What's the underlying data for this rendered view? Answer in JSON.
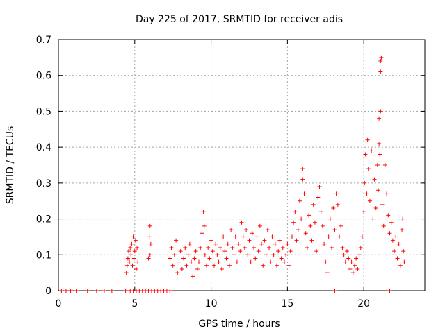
{
  "chart_data": {
    "type": "scatter",
    "title": "Day 225 of 2017, SRMTID for receiver adis",
    "xlabel": "GPS time / hours",
    "ylabel": "SRMTID / TECUs",
    "xlim": [
      0,
      24
    ],
    "ylim": [
      0,
      0.7
    ],
    "x_ticks": [
      0,
      5,
      10,
      15,
      20
    ],
    "y_ticks": [
      0,
      0.1,
      0.2,
      0.3,
      0.4,
      0.5,
      0.6,
      0.7
    ],
    "x_tick_labels": [
      "0",
      "5",
      "10",
      "15",
      "20"
    ],
    "y_tick_labels": [
      "0",
      "0.1",
      "0.2",
      "0.3",
      "0.4",
      "0.5",
      "0.6",
      "0.7"
    ],
    "grid": true,
    "marker": "+",
    "colors": {
      "points": "#ff0000",
      "grid": "#a0a0a0",
      "axis": "#000000"
    },
    "series": [
      {
        "name": "SRMTID",
        "points": [
          [
            0.2,
            0
          ],
          [
            0.5,
            0
          ],
          [
            0.8,
            0
          ],
          [
            1.2,
            0
          ],
          [
            1.9,
            0
          ],
          [
            2.5,
            0
          ],
          [
            3.0,
            0
          ],
          [
            3.5,
            0
          ],
          [
            4.4,
            0
          ],
          [
            4.7,
            0
          ],
          [
            4.9,
            0
          ],
          [
            5.1,
            0
          ],
          [
            5.3,
            0
          ],
          [
            5.5,
            0
          ],
          [
            5.7,
            0
          ],
          [
            5.9,
            0
          ],
          [
            6.1,
            0
          ],
          [
            6.3,
            0
          ],
          [
            6.5,
            0
          ],
          [
            6.7,
            0
          ],
          [
            6.9,
            0
          ],
          [
            7.1,
            0
          ],
          [
            7.3,
            0
          ],
          [
            18.1,
            0
          ],
          [
            21.7,
            0
          ],
          [
            4.45,
            0.05
          ],
          [
            4.5,
            0.07
          ],
          [
            4.55,
            0.09
          ],
          [
            4.6,
            0.11
          ],
          [
            4.65,
            0.08
          ],
          [
            4.7,
            0.12
          ],
          [
            4.75,
            0.1
          ],
          [
            4.8,
            0.13
          ],
          [
            4.85,
            0.07
          ],
          [
            4.9,
            0.15
          ],
          [
            4.95,
            0.09
          ],
          [
            5.0,
            0.11
          ],
          [
            5.05,
            0.14
          ],
          [
            5.1,
            0.06
          ],
          [
            5.15,
            0.12
          ],
          [
            5.2,
            0.08
          ],
          [
            5.9,
            0.09
          ],
          [
            5.95,
            0.15
          ],
          [
            6.0,
            0.18
          ],
          [
            6.0,
            0.1
          ],
          [
            6.05,
            0.13
          ],
          [
            7.3,
            0.09
          ],
          [
            7.4,
            0.12
          ],
          [
            7.5,
            0.07
          ],
          [
            7.6,
            0.1
          ],
          [
            7.7,
            0.14
          ],
          [
            7.8,
            0.05
          ],
          [
            7.9,
            0.08
          ],
          [
            8.0,
            0.11
          ],
          [
            8.1,
            0.06
          ],
          [
            8.2,
            0.09
          ],
          [
            8.3,
            0.12
          ],
          [
            8.4,
            0.07
          ],
          [
            8.5,
            0.1
          ],
          [
            8.6,
            0.13
          ],
          [
            8.7,
            0.08
          ],
          [
            8.8,
            0.04
          ],
          [
            8.9,
            0.09
          ],
          [
            9.0,
            0.11
          ],
          [
            9.1,
            0.06
          ],
          [
            9.2,
            0.08
          ],
          [
            9.3,
            0.12
          ],
          [
            9.4,
            0.16
          ],
          [
            9.5,
            0.22
          ],
          [
            9.55,
            0.18
          ],
          [
            9.6,
            0.1
          ],
          [
            9.7,
            0.07
          ],
          [
            9.8,
            0.12
          ],
          [
            9.9,
            0.09
          ],
          [
            10.0,
            0.14
          ],
          [
            10.1,
            0.11
          ],
          [
            10.2,
            0.07
          ],
          [
            10.3,
            0.13
          ],
          [
            10.4,
            0.1
          ],
          [
            10.5,
            0.08
          ],
          [
            10.6,
            0.12
          ],
          [
            10.7,
            0.06
          ],
          [
            10.8,
            0.15
          ],
          [
            10.9,
            0.11
          ],
          [
            11.0,
            0.09
          ],
          [
            11.1,
            0.13
          ],
          [
            11.2,
            0.07
          ],
          [
            11.3,
            0.17
          ],
          [
            11.4,
            0.12
          ],
          [
            11.5,
            0.1
          ],
          [
            11.6,
            0.15
          ],
          [
            11.7,
            0.08
          ],
          [
            11.8,
            0.13
          ],
          [
            11.9,
            0.11
          ],
          [
            12.0,
            0.19
          ],
          [
            12.1,
            0.15
          ],
          [
            12.2,
            0.12
          ],
          [
            12.3,
            0.17
          ],
          [
            12.4,
            0.1
          ],
          [
            12.5,
            0.14
          ],
          [
            12.6,
            0.08
          ],
          [
            12.7,
            0.16
          ],
          [
            12.8,
            0.12
          ],
          [
            12.9,
            0.09
          ],
          [
            13.0,
            0.15
          ],
          [
            13.1,
            0.11
          ],
          [
            13.2,
            0.18
          ],
          [
            13.3,
            0.13
          ],
          [
            13.4,
            0.07
          ],
          [
            13.5,
            0.14
          ],
          [
            13.6,
            0.1
          ],
          [
            13.7,
            0.17
          ],
          [
            13.8,
            0.12
          ],
          [
            13.9,
            0.08
          ],
          [
            14.0,
            0.15
          ],
          [
            14.1,
            0.1
          ],
          [
            14.2,
            0.13
          ],
          [
            14.3,
            0.07
          ],
          [
            14.4,
            0.11
          ],
          [
            14.5,
            0.14
          ],
          [
            14.6,
            0.09
          ],
          [
            14.7,
            0.12
          ],
          [
            14.8,
            0.08
          ],
          [
            14.9,
            0.1
          ],
          [
            15.0,
            0.13
          ],
          [
            15.1,
            0.07
          ],
          [
            15.2,
            0.11
          ],
          [
            15.3,
            0.15
          ],
          [
            15.4,
            0.19
          ],
          [
            15.5,
            0.22
          ],
          [
            15.6,
            0.14
          ],
          [
            15.7,
            0.17
          ],
          [
            15.8,
            0.25
          ],
          [
            15.9,
            0.2
          ],
          [
            16.0,
            0.34
          ],
          [
            16.0,
            0.31
          ],
          [
            16.1,
            0.27
          ],
          [
            16.2,
            0.16
          ],
          [
            16.3,
            0.12
          ],
          [
            16.4,
            0.21
          ],
          [
            16.5,
            0.18
          ],
          [
            16.6,
            0.14
          ],
          [
            16.7,
            0.24
          ],
          [
            16.8,
            0.19
          ],
          [
            16.9,
            0.11
          ],
          [
            17.0,
            0.26
          ],
          [
            17.1,
            0.29
          ],
          [
            17.2,
            0.22
          ],
          [
            17.3,
            0.18
          ],
          [
            17.4,
            0.13
          ],
          [
            17.5,
            0.08
          ],
          [
            17.6,
            0.05
          ],
          [
            17.7,
            0.15
          ],
          [
            17.8,
            0.2
          ],
          [
            17.9,
            0.12
          ],
          [
            18.0,
            0.23
          ],
          [
            18.1,
            0.17
          ],
          [
            18.2,
            0.27
          ],
          [
            18.3,
            0.24
          ],
          [
            18.4,
            0.15
          ],
          [
            18.5,
            0.18
          ],
          [
            18.6,
            0.12
          ],
          [
            18.7,
            0.1
          ],
          [
            18.8,
            0.08
          ],
          [
            18.9,
            0.11
          ],
          [
            19.0,
            0.09
          ],
          [
            19.1,
            0.06
          ],
          [
            19.2,
            0.08
          ],
          [
            19.3,
            0.05
          ],
          [
            19.4,
            0.07
          ],
          [
            19.5,
            0.09
          ],
          [
            19.6,
            0.06
          ],
          [
            19.7,
            0.1
          ],
          [
            19.8,
            0.12
          ],
          [
            19.9,
            0.15
          ],
          [
            20.0,
            0.22
          ],
          [
            20.05,
            0.3
          ],
          [
            20.1,
            0.38
          ],
          [
            20.2,
            0.27
          ],
          [
            20.25,
            0.42
          ],
          [
            20.3,
            0.34
          ],
          [
            20.4,
            0.25
          ],
          [
            20.5,
            0.39
          ],
          [
            20.6,
            0.2
          ],
          [
            20.7,
            0.31
          ],
          [
            20.8,
            0.23
          ],
          [
            20.9,
            0.35
          ],
          [
            20.95,
            0.28
          ],
          [
            21.0,
            0.41
          ],
          [
            21.0,
            0.48
          ],
          [
            21.05,
            0.38
          ],
          [
            21.1,
            0.5
          ],
          [
            21.1,
            0.61
          ],
          [
            21.1,
            0.64
          ],
          [
            21.15,
            0.65
          ],
          [
            21.2,
            0.24
          ],
          [
            21.3,
            0.18
          ],
          [
            21.4,
            0.35
          ],
          [
            21.5,
            0.27
          ],
          [
            21.6,
            0.21
          ],
          [
            21.7,
            0.16
          ],
          [
            21.8,
            0.19
          ],
          [
            21.9,
            0.14
          ],
          [
            22.0,
            0.11
          ],
          [
            22.1,
            0.15
          ],
          [
            22.2,
            0.09
          ],
          [
            22.3,
            0.13
          ],
          [
            22.4,
            0.07
          ],
          [
            22.5,
            0.17
          ],
          [
            22.55,
            0.2
          ],
          [
            22.6,
            0.11
          ],
          [
            22.65,
            0.08
          ]
        ]
      }
    ]
  }
}
